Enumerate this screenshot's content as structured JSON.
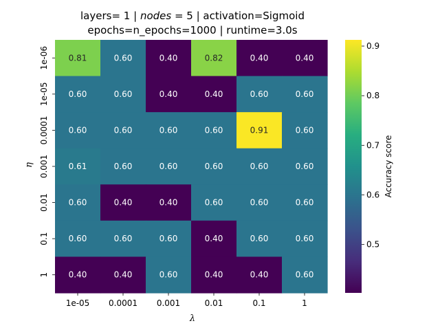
{
  "chart_data": {
    "type": "heatmap",
    "title_line1": {
      "pre": "layers= 1 | ",
      "italic": "nodes",
      "post": " = 5 | activation=Sigmoid"
    },
    "title_line2": "epochs=n_epochs=1000 | runtime=3.0s",
    "xlabel": "λ",
    "ylabel": "η",
    "x_categories": [
      "1e-05",
      "0.0001",
      "0.001",
      "0.01",
      "0.1",
      "1"
    ],
    "y_categories": [
      "1e-06",
      "1e-05",
      "0.0001",
      "0.001",
      "0.01",
      "0.1",
      "1"
    ],
    "values": [
      [
        0.81,
        0.6,
        0.4,
        0.82,
        0.4,
        0.4
      ],
      [
        0.6,
        0.6,
        0.4,
        0.4,
        0.6,
        0.6
      ],
      [
        0.6,
        0.6,
        0.6,
        0.6,
        0.91,
        0.6
      ],
      [
        0.61,
        0.6,
        0.6,
        0.6,
        0.6,
        0.6
      ],
      [
        0.6,
        0.4,
        0.4,
        0.6,
        0.6,
        0.6
      ],
      [
        0.6,
        0.6,
        0.6,
        0.4,
        0.6,
        0.6
      ],
      [
        0.4,
        0.4,
        0.6,
        0.4,
        0.4,
        0.6
      ]
    ],
    "value_labels": [
      [
        "0.81",
        "0.60",
        "0.40",
        "0.82",
        "0.40",
        "0.40"
      ],
      [
        "0.60",
        "0.60",
        "0.40",
        "0.40",
        "0.60",
        "0.60"
      ],
      [
        "0.60",
        "0.60",
        "0.60",
        "0.60",
        "0.91",
        "0.60"
      ],
      [
        "0.61",
        "0.60",
        "0.60",
        "0.60",
        "0.60",
        "0.60"
      ],
      [
        "0.60",
        "0.40",
        "0.40",
        "0.60",
        "0.60",
        "0.60"
      ],
      [
        "0.60",
        "0.60",
        "0.60",
        "0.40",
        "0.60",
        "0.60"
      ],
      [
        "0.40",
        "0.40",
        "0.60",
        "0.40",
        "0.40",
        "0.60"
      ]
    ],
    "colorbar": {
      "label": "Accuracy score",
      "range": [
        0.4025,
        0.9125
      ],
      "ticks": [
        0.5,
        0.6,
        0.7,
        0.8,
        0.9
      ],
      "tick_labels": [
        "0.5",
        "0.6",
        "0.7",
        "0.8",
        "0.9"
      ],
      "colormap": "viridis"
    }
  }
}
